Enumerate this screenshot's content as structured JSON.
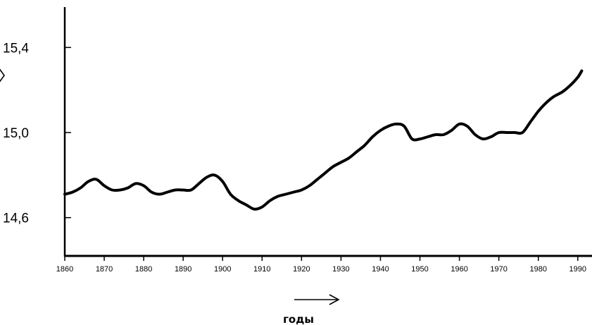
{
  "chart_data": {
    "type": "line",
    "xlabel": "годы",
    "ylabel": "",
    "xlim": [
      1860,
      1992
    ],
    "ylim": [
      14.42,
      15.59
    ],
    "grid": false,
    "x_ticks": [
      1860,
      1870,
      1880,
      1890,
      1900,
      1910,
      1920,
      1930,
      1940,
      1950,
      1960,
      1970,
      1980,
      1990
    ],
    "x_tick_labels": [
      "1860",
      "1870",
      "1880",
      "1890",
      "1900",
      "1910",
      "1920",
      "1930",
      "1940",
      "1950",
      "1960",
      "1970",
      "1980",
      "1990"
    ],
    "y_ticks": [
      14.6,
      15.0,
      15.4
    ],
    "y_tick_labels": [
      "14,6",
      "15,0",
      "15,4"
    ],
    "series": [
      {
        "x": [
          1860,
          1862,
          1864,
          1866,
          1868,
          1870,
          1872,
          1874,
          1876,
          1878,
          1880,
          1882,
          1884,
          1886,
          1888,
          1890,
          1892,
          1894,
          1896,
          1898,
          1900,
          1902,
          1904,
          1906,
          1908,
          1910,
          1912,
          1914,
          1916,
          1918,
          1920,
          1922,
          1924,
          1926,
          1928,
          1930,
          1932,
          1934,
          1936,
          1938,
          1940,
          1942,
          1944,
          1946,
          1948,
          1950,
          1952,
          1954,
          1956,
          1958,
          1960,
          1962,
          1964,
          1966,
          1968,
          1970,
          1972,
          1974,
          1976,
          1978,
          1980,
          1982,
          1984,
          1986,
          1988,
          1990,
          1991
        ],
        "values": [
          14.71,
          14.72,
          14.74,
          14.77,
          14.78,
          14.75,
          14.73,
          14.73,
          14.74,
          14.76,
          14.75,
          14.72,
          14.71,
          14.72,
          14.73,
          14.73,
          14.73,
          14.76,
          14.79,
          14.8,
          14.77,
          14.71,
          14.68,
          14.66,
          14.64,
          14.65,
          14.68,
          14.7,
          14.71,
          14.72,
          14.73,
          14.75,
          14.78,
          14.81,
          14.84,
          14.86,
          14.88,
          14.91,
          14.94,
          14.98,
          15.01,
          15.03,
          15.04,
          15.03,
          14.97,
          14.97,
          14.98,
          14.99,
          14.99,
          15.01,
          15.04,
          15.03,
          14.99,
          14.97,
          14.98,
          15.0,
          15.0,
          15.0,
          15.0,
          15.05,
          15.1,
          15.14,
          15.17,
          15.19,
          15.22,
          15.26,
          15.29
        ]
      }
    ]
  }
}
